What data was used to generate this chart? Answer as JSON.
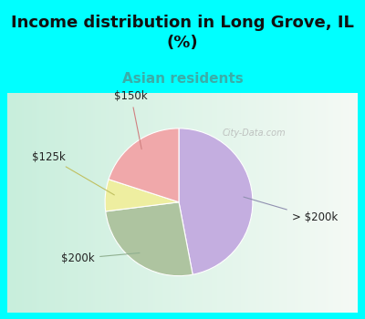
{
  "title": "Income distribution in Long Grove, IL\n(%)",
  "subtitle": "Asian residents",
  "title_color": "#111111",
  "subtitle_color": "#3aada8",
  "bg_color": "#00ffff",
  "chart_bg_left": "#c8eedc",
  "chart_bg_right": "#e8f6f0",
  "slices": [
    {
      "label": "> $200k",
      "value": 47,
      "color": "#c4aee0"
    },
    {
      "label": "$200k",
      "value": 26,
      "color": "#aec4a0"
    },
    {
      "label": "$125k",
      "value": 7,
      "color": "#eeeea0"
    },
    {
      "label": "$150k",
      "value": 20,
      "color": "#f0a8aa"
    }
  ],
  "startangle": 90,
  "label_fontsize": 8.5,
  "title_fontsize": 13,
  "subtitle_fontsize": 11,
  "watermark": "City-Data.com"
}
